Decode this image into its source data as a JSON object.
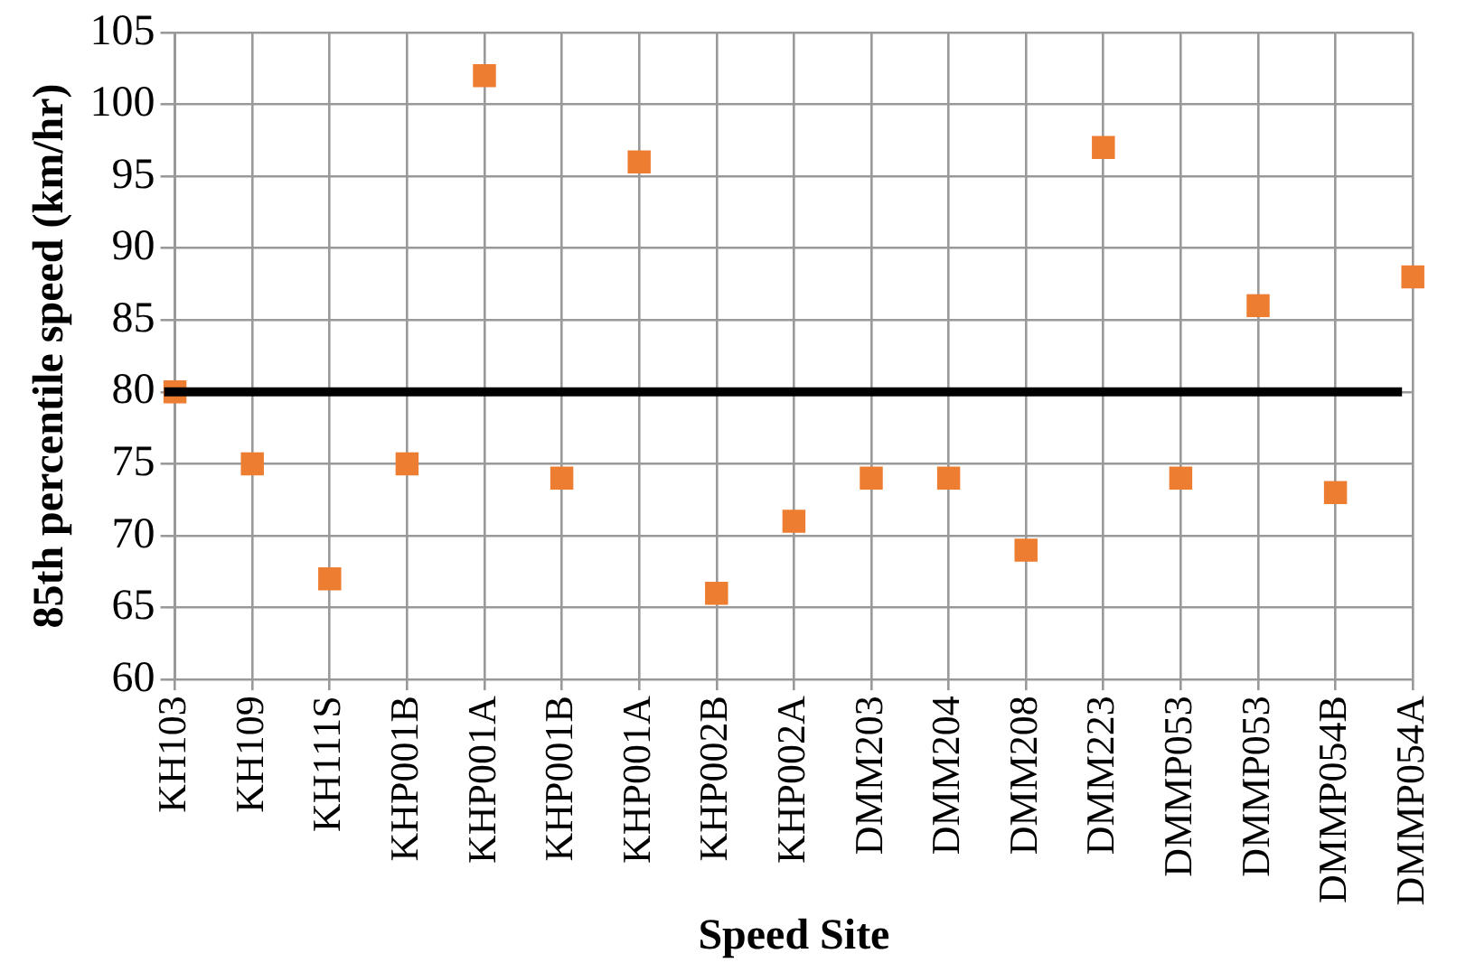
{
  "chart_data": {
    "type": "scatter",
    "xlabel": "Speed Site",
    "ylabel": "85th percentile speed (km/hr)",
    "categories": [
      "KH103",
      "KH109",
      "KH111S",
      "KHP001B",
      "KHP001A",
      "KHP001B",
      "KHP001A",
      "KHP002B",
      "KHP002A",
      "DMM203",
      "DMM204",
      "DMM208",
      "DMM223",
      "DMMP053",
      "DMMP053",
      "DMMP054B",
      "DMMP054A"
    ],
    "series": [
      {
        "color": "#ed7d31",
        "values": [
          80,
          75,
          67,
          75,
          102,
          74,
          96,
          66,
          71,
          74,
          74,
          69,
          97,
          74,
          86,
          73,
          88
        ]
      }
    ],
    "ylim": [
      60,
      105
    ],
    "yticks": [
      60,
      65,
      70,
      75,
      80,
      85,
      90,
      95,
      100,
      105
    ],
    "ref_lines": [
      {
        "axis": "y",
        "value": 80,
        "color": "#000000",
        "line_style": "solid"
      }
    ],
    "grid": true,
    "legend": false,
    "marker": "square"
  }
}
